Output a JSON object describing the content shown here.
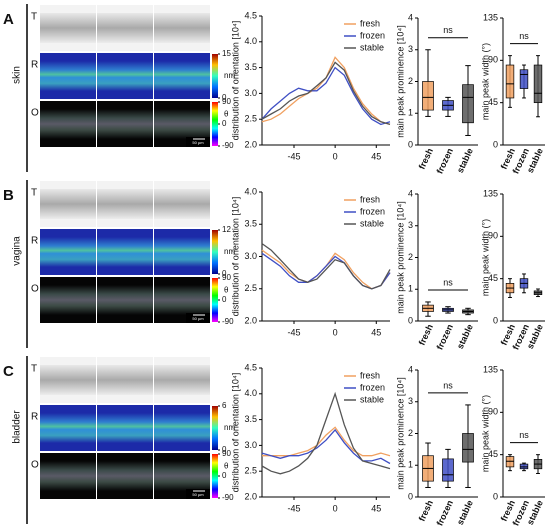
{
  "panels": [
    {
      "label": "A",
      "tissue": "skin",
      "rows": [
        "T",
        "R",
        "O"
      ],
      "r_colorbar": {
        "ticks": [
          15,
          0
        ],
        "unit": "nm"
      },
      "o_colorbar": {
        "ticks": [
          90,
          0,
          -90
        ],
        "unit": "θ"
      },
      "scale_bar": "50 µm"
    },
    {
      "label": "B",
      "tissue": "vagina",
      "rows": [
        "T",
        "R",
        "O"
      ],
      "r_colorbar": {
        "ticks": [
          12,
          0
        ],
        "unit": "nm"
      },
      "o_colorbar": {
        "ticks": [
          90,
          0,
          -90
        ],
        "unit": "θ"
      },
      "scale_bar": "50 µm"
    },
    {
      "label": "C",
      "tissue": "bladder",
      "rows": [
        "T",
        "R",
        "O"
      ],
      "r_colorbar": {
        "ticks": [
          6,
          0
        ],
        "unit": "nm"
      },
      "o_colorbar": {
        "ticks": [
          90,
          0,
          -90
        ],
        "unit": "θ"
      },
      "scale_bar": "50 µm"
    }
  ],
  "chart_data": [
    {
      "type": "line",
      "y_label": "distribution of orientation [10⁴]",
      "x": [
        -80,
        -70,
        -60,
        -50,
        -40,
        -30,
        -20,
        -10,
        0,
        10,
        20,
        30,
        40,
        50,
        60
      ],
      "xlim": [
        -80,
        60
      ],
      "xticks": [
        -45,
        0,
        45
      ],
      "ylim": [
        2,
        4.5
      ],
      "yticks": [
        {
          "value": 2,
          "label": "2.0"
        },
        {
          "value": 2.5,
          "label": "2.5"
        },
        {
          "value": 3,
          "label": "3.0"
        },
        {
          "value": 3.5,
          "label": "3.5"
        },
        {
          "value": 4,
          "label": "4.0"
        },
        {
          "value": 4.5,
          "label": "4.5"
        }
      ],
      "legend": "top-right",
      "series": [
        {
          "name": "fresh",
          "color": "#f0a060",
          "values": [
            2.45,
            2.5,
            2.6,
            2.75,
            2.9,
            3.0,
            3.1,
            3.3,
            3.7,
            3.5,
            3.1,
            2.8,
            2.6,
            2.45,
            2.4
          ]
        },
        {
          "name": "frozen",
          "color": "#3f4fc4",
          "values": [
            2.5,
            2.7,
            2.85,
            3.0,
            3.1,
            3.05,
            3.05,
            3.2,
            3.5,
            3.35,
            3.0,
            2.7,
            2.5,
            2.4,
            2.45
          ]
        },
        {
          "name": "stable",
          "color": "#555555",
          "values": [
            2.5,
            2.6,
            2.7,
            2.85,
            2.95,
            3.0,
            3.15,
            3.3,
            3.6,
            3.45,
            3.05,
            2.75,
            2.55,
            2.45,
            2.4
          ]
        }
      ]
    },
    {
      "type": "box",
      "y_label": "main peak prominence [10⁴]",
      "categories": [
        "fresh",
        "frozen",
        "stable"
      ],
      "colors": [
        "#f0a060",
        "#3f4fc4",
        "#555555"
      ],
      "min": [
        0.9,
        0.9,
        0.3
      ],
      "q1": [
        1.1,
        1.1,
        0.7
      ],
      "median": [
        1.5,
        1.25,
        1.5
      ],
      "q3": [
        2.0,
        1.4,
        1.9
      ],
      "max": [
        3.0,
        1.5,
        2.5
      ],
      "ylim": [
        0,
        4
      ],
      "yticks": [
        0,
        1,
        2,
        3,
        4
      ],
      "annotation": "ns"
    },
    {
      "type": "box",
      "y_label": "main peak width (°)",
      "categories": [
        "fresh",
        "frozen",
        "stable"
      ],
      "colors": [
        "#f0a060",
        "#3f4fc4",
        "#555555"
      ],
      "min": [
        40,
        50,
        30
      ],
      "q1": [
        50,
        60,
        45
      ],
      "median": [
        65,
        75,
        55
      ],
      "q3": [
        85,
        80,
        85
      ],
      "max": [
        95,
        85,
        95
      ],
      "ylim": [
        0,
        135
      ],
      "yticks": [
        0,
        45,
        90,
        135
      ],
      "annotation": "ns"
    },
    {
      "type": "line",
      "y_label": "distribution of orientation [10⁴]",
      "x": [
        -80,
        -70,
        -60,
        -50,
        -40,
        -30,
        -20,
        -10,
        0,
        10,
        20,
        30,
        40,
        50,
        60
      ],
      "xlim": [
        -80,
        60
      ],
      "xticks": [
        -45,
        0,
        45
      ],
      "ylim": [
        2,
        4
      ],
      "yticks": [
        {
          "value": 2,
          "label": "2.0"
        },
        {
          "value": 2.5,
          "label": "2.5"
        },
        {
          "value": 3,
          "label": "3.0"
        },
        {
          "value": 3.5,
          "label": "3.5"
        },
        {
          "value": 4,
          "label": "4.0"
        }
      ],
      "legend": "top-right",
      "series": [
        {
          "name": "fresh",
          "color": "#f0a060",
          "values": [
            3.1,
            3.0,
            2.9,
            2.75,
            2.65,
            2.6,
            2.7,
            2.85,
            3.05,
            2.95,
            2.75,
            2.6,
            2.5,
            2.55,
            2.75
          ]
        },
        {
          "name": "frozen",
          "color": "#3f4fc4",
          "values": [
            3.05,
            2.95,
            2.85,
            2.7,
            2.6,
            2.6,
            2.7,
            2.85,
            3.0,
            2.9,
            2.7,
            2.55,
            2.5,
            2.55,
            2.75
          ]
        },
        {
          "name": "stable",
          "color": "#555555",
          "values": [
            3.2,
            3.1,
            2.95,
            2.8,
            2.65,
            2.6,
            2.65,
            2.8,
            2.95,
            2.9,
            2.7,
            2.55,
            2.5,
            2.55,
            2.8
          ]
        }
      ]
    },
    {
      "type": "box",
      "y_label": "main peak prominence [10⁴]",
      "categories": [
        "fresh",
        "frozen",
        "stable"
      ],
      "colors": [
        "#f0a060",
        "#3f4fc4",
        "#555555"
      ],
      "min": [
        0.15,
        0.25,
        0.2
      ],
      "q1": [
        0.3,
        0.3,
        0.25
      ],
      "median": [
        0.4,
        0.35,
        0.3
      ],
      "q3": [
        0.5,
        0.4,
        0.35
      ],
      "max": [
        0.6,
        0.45,
        0.4
      ],
      "ylim": [
        0,
        4
      ],
      "yticks": [
        0,
        1,
        2,
        3,
        4
      ],
      "annotation": "ns"
    },
    {
      "type": "box",
      "y_label": "main peak width (°)",
      "categories": [
        "fresh",
        "frozen",
        "stable"
      ],
      "colors": [
        "#f0a060",
        "#3f4fc4",
        "#555555"
      ],
      "min": [
        25,
        30,
        26
      ],
      "q1": [
        30,
        35,
        28
      ],
      "median": [
        35,
        40,
        30
      ],
      "q3": [
        40,
        45,
        32
      ],
      "max": [
        45,
        50,
        34
      ],
      "ylim": [
        0,
        135
      ],
      "yticks": [
        0,
        45,
        90,
        135
      ]
    },
    {
      "type": "line",
      "y_label": "distribution of orientation [10⁴]",
      "x": [
        -80,
        -70,
        -60,
        -50,
        -40,
        -30,
        -20,
        -10,
        0,
        10,
        20,
        30,
        40,
        50,
        60
      ],
      "xlim": [
        -80,
        60
      ],
      "xticks": [
        -45,
        0,
        45
      ],
      "ylim": [
        2,
        4.5
      ],
      "yticks": [
        {
          "value": 2,
          "label": "2.0"
        },
        {
          "value": 2.5,
          "label": "2.5"
        },
        {
          "value": 3,
          "label": "3.0"
        },
        {
          "value": 3.5,
          "label": "3.5"
        },
        {
          "value": 4,
          "label": "4.0"
        },
        {
          "value": 4.5,
          "label": "4.5"
        }
      ],
      "legend": "top-right",
      "series": [
        {
          "name": "fresh",
          "color": "#f0a060",
          "values": [
            2.8,
            2.8,
            2.8,
            2.8,
            2.85,
            2.9,
            3.0,
            3.2,
            3.35,
            3.1,
            2.9,
            2.8,
            2.8,
            2.85,
            2.8
          ]
        },
        {
          "name": "frozen",
          "color": "#3f4fc4",
          "values": [
            2.85,
            2.8,
            2.75,
            2.8,
            2.8,
            2.85,
            2.95,
            3.1,
            3.3,
            3.05,
            2.85,
            2.7,
            2.7,
            2.75,
            2.65
          ]
        },
        {
          "name": "stable",
          "color": "#555555",
          "values": [
            2.6,
            2.5,
            2.45,
            2.5,
            2.6,
            2.75,
            3.0,
            3.5,
            4.0,
            3.4,
            2.95,
            2.7,
            2.65,
            2.6,
            2.55
          ]
        }
      ]
    },
    {
      "type": "box",
      "y_label": "main peak prominence [10⁴]",
      "categories": [
        "fresh",
        "frozen",
        "stable"
      ],
      "colors": [
        "#f0a060",
        "#3f4fc4",
        "#555555"
      ],
      "min": [
        0.3,
        0.3,
        0.3
      ],
      "q1": [
        0.5,
        0.5,
        1.1
      ],
      "median": [
        0.9,
        0.7,
        1.5
      ],
      "q3": [
        1.3,
        1.2,
        2.0
      ],
      "max": [
        1.7,
        1.5,
        2.9
      ],
      "ylim": [
        0,
        4
      ],
      "yticks": [
        0,
        1,
        2,
        3,
        4
      ],
      "annotation": "ns"
    },
    {
      "type": "box",
      "y_label": "main peak width (°)",
      "categories": [
        "fresh",
        "frozen",
        "stable"
      ],
      "colors": [
        "#f0a060",
        "#3f4fc4",
        "#555555"
      ],
      "min": [
        28,
        28,
        25
      ],
      "q1": [
        32,
        30,
        30
      ],
      "median": [
        38,
        32,
        35
      ],
      "q3": [
        43,
        35,
        40
      ],
      "max": [
        45,
        36,
        45
      ],
      "ylim": [
        0,
        135
      ],
      "yticks": [
        0,
        45,
        90,
        135
      ],
      "annotation": "ns"
    }
  ]
}
